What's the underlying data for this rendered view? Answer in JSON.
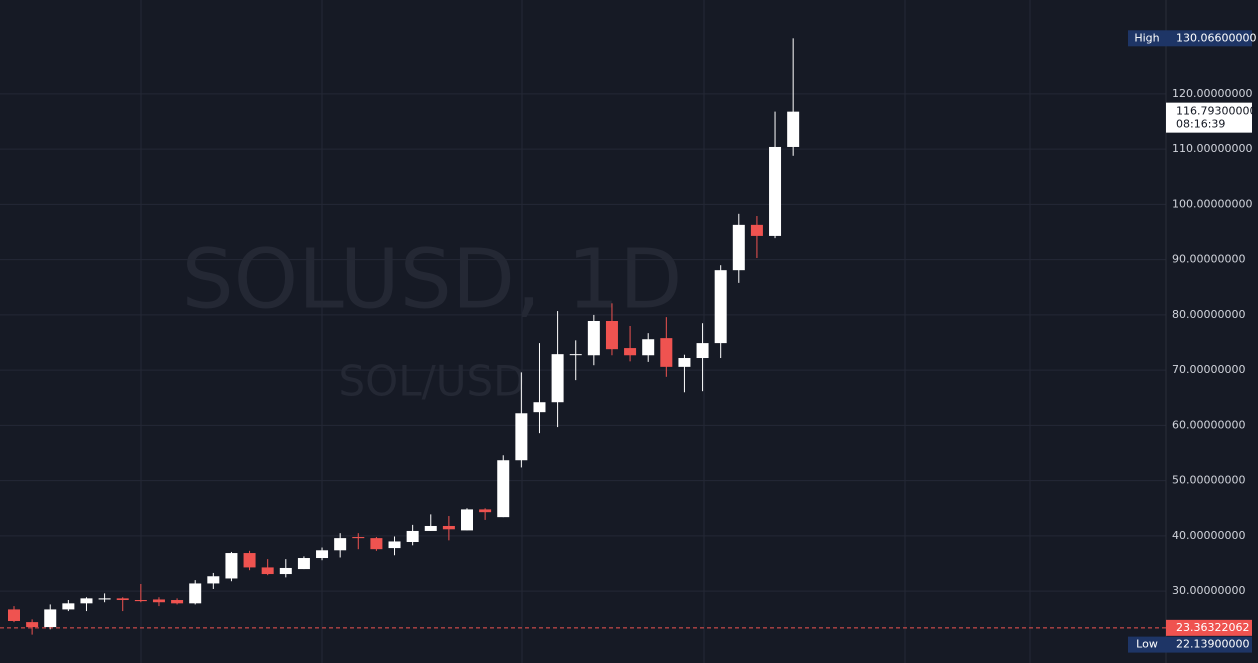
{
  "chart_data": {
    "type": "candlestick",
    "watermark": {
      "title": "SOLUSD, 1D",
      "subtitle": "SOL/USD"
    },
    "up_color": "#ffffff",
    "down_color": "#ef5350",
    "open": [
      26.7,
      24.4,
      23.5,
      26.7,
      27.8,
      28.5,
      28.7,
      28.4,
      28.5,
      28.4,
      27.8,
      31.4,
      32.3,
      36.9,
      34.3,
      33.1,
      34.0,
      36.0,
      37.4,
      39.8,
      39.6,
      37.8,
      38.9,
      40.9,
      41.8,
      41.0,
      44.8,
      43.4,
      53.7,
      62.4,
      64.2,
      72.9,
      72.7,
      78.9,
      74.0,
      72.7,
      75.8,
      70.6,
      72.2,
      74.9,
      88.1,
      96.3,
      94.3,
      110.4
    ],
    "high": [
      27.3,
      24.9,
      27.6,
      28.4,
      28.9,
      29.6,
      28.9,
      31.3,
      28.9,
      28.7,
      32.0,
      33.3,
      37.1,
      37.3,
      35.8,
      35.8,
      36.3,
      37.9,
      40.5,
      40.5,
      39.8,
      39.9,
      42.0,
      43.9,
      43.6,
      45.0,
      45.0,
      54.6,
      69.6,
      74.9,
      80.7,
      75.4,
      80.0,
      82.1,
      78.0,
      76.7,
      79.6,
      72.8,
      78.5,
      89.0,
      98.3,
      97.9,
      116.8,
      130.066
    ],
    "low": [
      24.4,
      22.139,
      23.1,
      26.4,
      26.4,
      28.0,
      26.4,
      28.0,
      27.3,
      27.6,
      27.6,
      30.4,
      31.8,
      33.8,
      32.9,
      32.5,
      34.0,
      35.6,
      36.1,
      37.6,
      37.3,
      36.5,
      38.3,
      40.9,
      39.2,
      41.0,
      42.9,
      43.4,
      52.4,
      58.6,
      59.7,
      68.2,
      70.9,
      72.7,
      71.6,
      71.5,
      68.8,
      66.0,
      66.2,
      72.2,
      85.8,
      90.3,
      93.9,
      108.8
    ],
    "close": [
      24.6,
      23.5,
      26.7,
      27.8,
      28.7,
      28.7,
      28.4,
      28.2,
      28.0,
      27.8,
      31.4,
      32.7,
      36.9,
      34.3,
      33.1,
      34.2,
      36.0,
      37.4,
      39.6,
      39.6,
      37.6,
      39.0,
      40.9,
      41.8,
      41.2,
      44.8,
      44.3,
      53.7,
      62.2,
      64.2,
      72.9,
      72.9,
      78.9,
      73.8,
      72.7,
      75.6,
      70.6,
      72.2,
      74.9,
      88.1,
      96.3,
      94.3,
      110.4,
      116.793
    ],
    "ylim": [
      17,
      137
    ],
    "yticks": [
      {
        "value": 30,
        "label": "30.00000000"
      },
      {
        "value": 40,
        "label": "40.00000000"
      },
      {
        "value": 50,
        "label": "50.00000000"
      },
      {
        "value": 60,
        "label": "60.00000000"
      },
      {
        "value": 70,
        "label": "70.00000000"
      },
      {
        "value": 80,
        "label": "80.00000000"
      },
      {
        "value": 90,
        "label": "90.00000000"
      },
      {
        "value": 100,
        "label": "100.00000000"
      },
      {
        "value": 110,
        "label": "110.00000000"
      },
      {
        "value": 120,
        "label": "120.00000000"
      }
    ],
    "grid": true,
    "high_marker": {
      "name": "High",
      "value": 130.066,
      "label": "130.06600000",
      "color": "#1e3566"
    },
    "low_marker": {
      "name": "Low",
      "value": 22.139,
      "label": "22.13900000",
      "color": "#1e3566"
    },
    "last_price": {
      "value": 116.793,
      "label": "116.79300000",
      "countdown": "08:16:39"
    },
    "price_line": {
      "value": 23.36322062,
      "label": "23.36322062",
      "color": "#ef5350"
    }
  }
}
